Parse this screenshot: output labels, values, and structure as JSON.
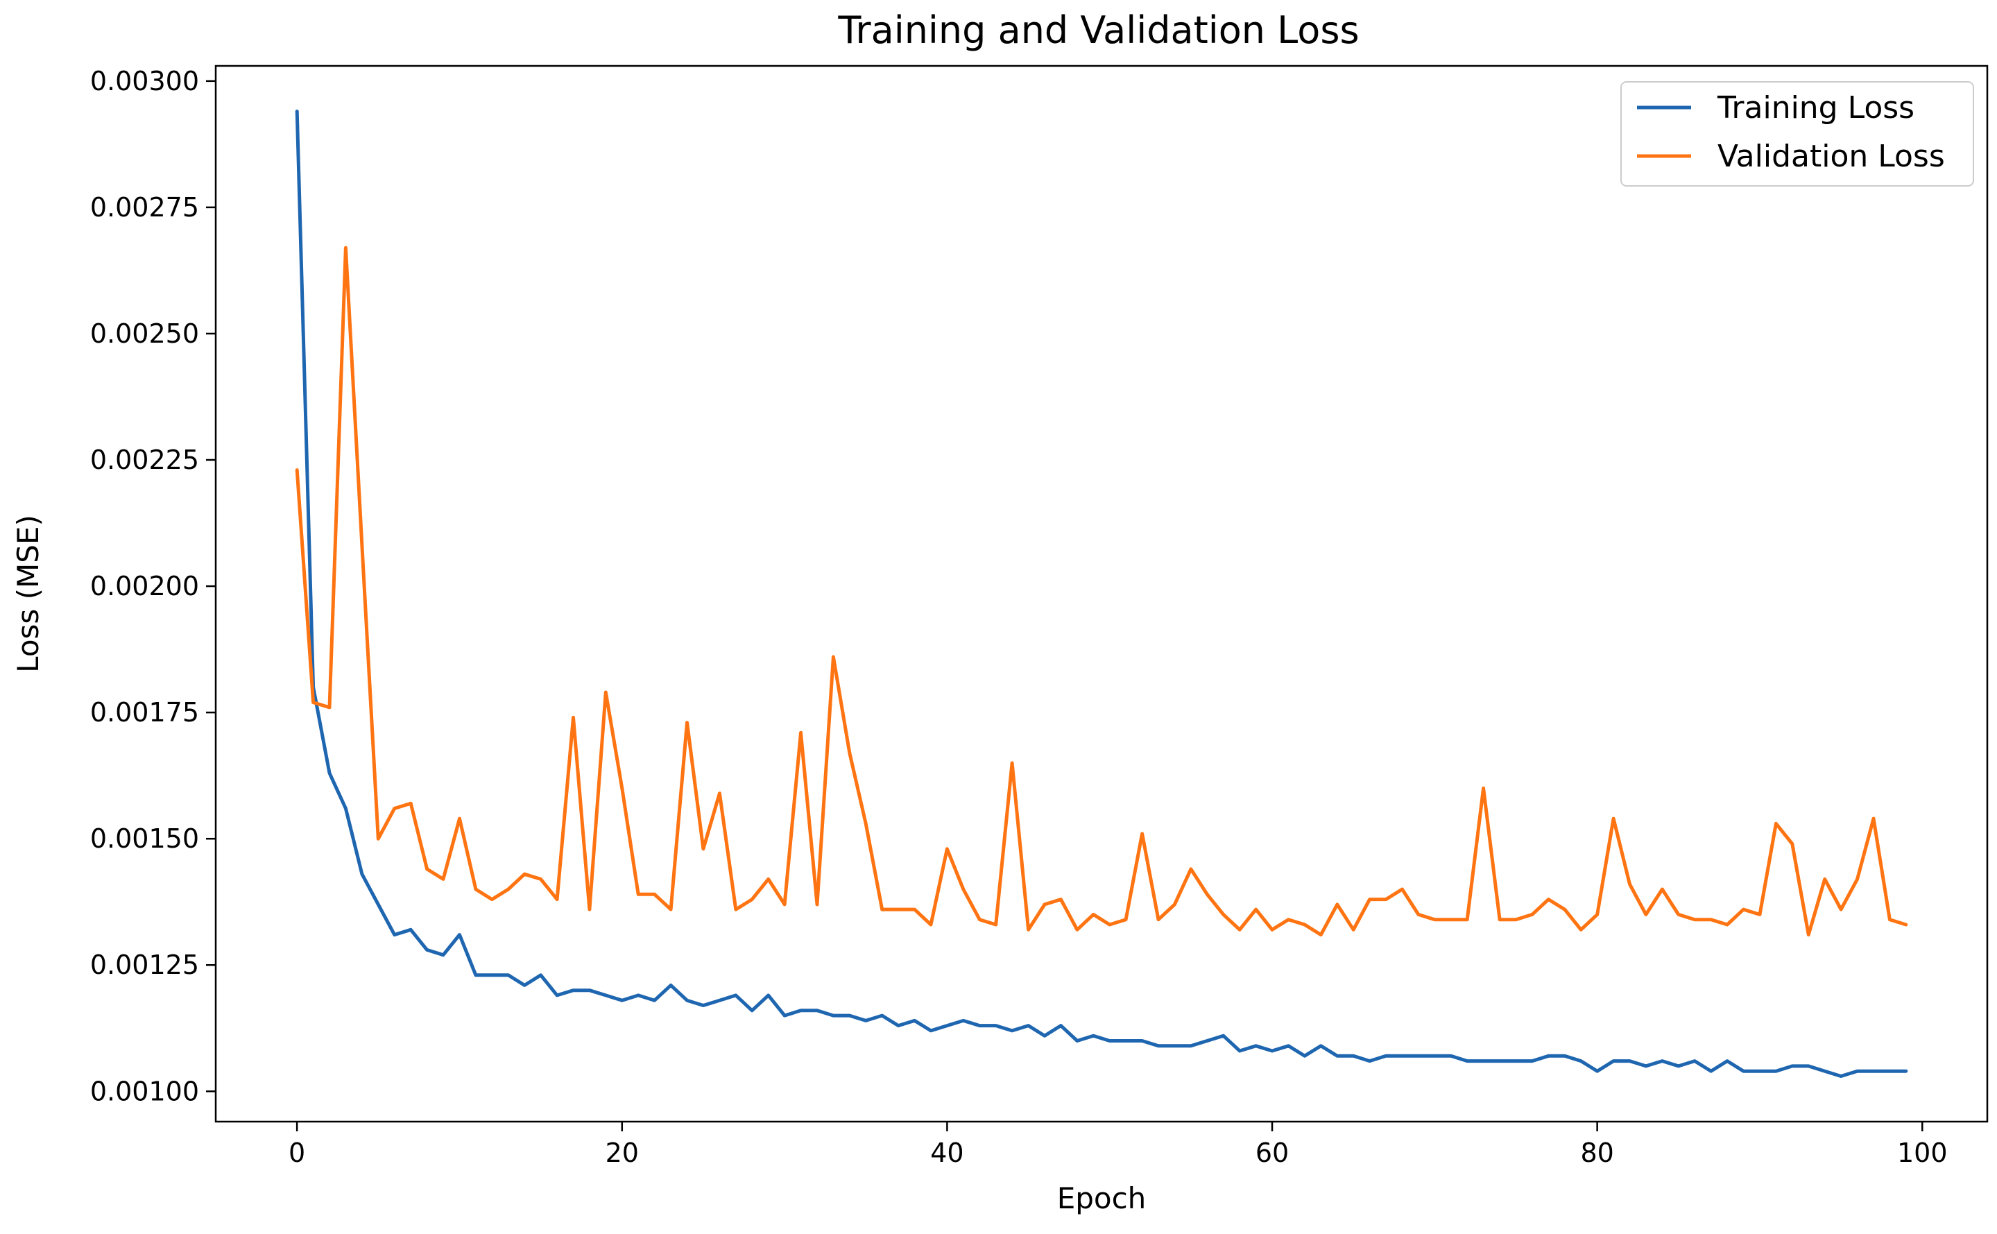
{
  "chart_data": {
    "type": "line",
    "title": "Training and Validation Loss",
    "xlabel": "Epoch",
    "ylabel": "Loss (MSE)",
    "xlim": [
      -5,
      104
    ],
    "ylim": [
      0.00094,
      0.00303
    ],
    "xticks": [
      0,
      20,
      40,
      60,
      80,
      100
    ],
    "yticks": [
      0.001,
      0.00125,
      0.0015,
      0.00175,
      0.002,
      0.00225,
      0.0025,
      0.00275,
      0.003
    ],
    "ytick_labels": [
      "0.00100",
      "0.00125",
      "0.00150",
      "0.00175",
      "0.00200",
      "0.00225",
      "0.00250",
      "0.00275",
      "0.00300"
    ],
    "grid": false,
    "legend_position": "top-right",
    "series": [
      {
        "name": "Training Loss",
        "color": "#1f66b0",
        "x": [
          0,
          1,
          2,
          3,
          4,
          5,
          6,
          7,
          8,
          9,
          10,
          11,
          12,
          13,
          14,
          15,
          16,
          17,
          18,
          19,
          20,
          21,
          22,
          23,
          24,
          25,
          26,
          27,
          28,
          29,
          30,
          31,
          32,
          33,
          34,
          35,
          36,
          37,
          38,
          39,
          40,
          41,
          42,
          43,
          44,
          45,
          46,
          47,
          48,
          49,
          50,
          51,
          52,
          53,
          54,
          55,
          56,
          57,
          58,
          59,
          60,
          61,
          62,
          63,
          64,
          65,
          66,
          67,
          68,
          69,
          70,
          71,
          72,
          73,
          74,
          75,
          76,
          77,
          78,
          79,
          80,
          81,
          82,
          83,
          84,
          85,
          86,
          87,
          88,
          89,
          90,
          91,
          92,
          93,
          94,
          95,
          96,
          97,
          98,
          99
        ],
        "values": [
          0.00294,
          0.0018,
          0.00163,
          0.00156,
          0.00143,
          0.00137,
          0.00131,
          0.00132,
          0.00128,
          0.00127,
          0.00131,
          0.00123,
          0.00123,
          0.00123,
          0.00121,
          0.00123,
          0.00119,
          0.0012,
          0.0012,
          0.00119,
          0.00118,
          0.00119,
          0.00118,
          0.00121,
          0.00118,
          0.00117,
          0.00118,
          0.00119,
          0.00116,
          0.00119,
          0.00115,
          0.00116,
          0.00116,
          0.00115,
          0.00115,
          0.00114,
          0.00115,
          0.00113,
          0.00114,
          0.00112,
          0.00113,
          0.00114,
          0.00113,
          0.00113,
          0.00112,
          0.00113,
          0.00111,
          0.00113,
          0.0011,
          0.00111,
          0.0011,
          0.0011,
          0.0011,
          0.00109,
          0.00109,
          0.00109,
          0.0011,
          0.00111,
          0.00108,
          0.00109,
          0.00108,
          0.00109,
          0.00107,
          0.00109,
          0.00107,
          0.00107,
          0.00106,
          0.00107,
          0.00107,
          0.00107,
          0.00107,
          0.00107,
          0.00106,
          0.00106,
          0.00106,
          0.00106,
          0.00106,
          0.00107,
          0.00107,
          0.00106,
          0.00104,
          0.00106,
          0.00106,
          0.00105,
          0.00106,
          0.00105,
          0.00106,
          0.00104,
          0.00106,
          0.00104,
          0.00104,
          0.00104,
          0.00105,
          0.00105,
          0.00104,
          0.00103,
          0.00104,
          0.00104,
          0.00104,
          0.00104
        ]
      },
      {
        "name": "Validation Loss",
        "color": "#ff7412",
        "x": [
          0,
          1,
          2,
          3,
          4,
          5,
          6,
          7,
          8,
          9,
          10,
          11,
          12,
          13,
          14,
          15,
          16,
          17,
          18,
          19,
          20,
          21,
          22,
          23,
          24,
          25,
          26,
          27,
          28,
          29,
          30,
          31,
          32,
          33,
          34,
          35,
          36,
          37,
          38,
          39,
          40,
          41,
          42,
          43,
          44,
          45,
          46,
          47,
          48,
          49,
          50,
          51,
          52,
          53,
          54,
          55,
          56,
          57,
          58,
          59,
          60,
          61,
          62,
          63,
          64,
          65,
          66,
          67,
          68,
          69,
          70,
          71,
          72,
          73,
          74,
          75,
          76,
          77,
          78,
          79,
          80,
          81,
          82,
          83,
          84,
          85,
          86,
          87,
          88,
          89,
          90,
          91,
          92,
          93,
          94,
          95,
          96,
          97,
          98,
          99
        ],
        "values": [
          0.00223,
          0.00177,
          0.00176,
          0.00267,
          0.00208,
          0.0015,
          0.00156,
          0.00157,
          0.00144,
          0.00142,
          0.00154,
          0.0014,
          0.00138,
          0.0014,
          0.00143,
          0.00142,
          0.00138,
          0.00174,
          0.00136,
          0.00179,
          0.0016,
          0.00139,
          0.00139,
          0.00136,
          0.00173,
          0.00148,
          0.00159,
          0.00136,
          0.00138,
          0.00142,
          0.00137,
          0.00171,
          0.00137,
          0.00186,
          0.00167,
          0.00153,
          0.00136,
          0.00136,
          0.00136,
          0.00133,
          0.00148,
          0.0014,
          0.00134,
          0.00133,
          0.00165,
          0.00132,
          0.00137,
          0.00138,
          0.00132,
          0.00135,
          0.00133,
          0.00134,
          0.00151,
          0.00134,
          0.00137,
          0.00144,
          0.00139,
          0.00135,
          0.00132,
          0.00136,
          0.00132,
          0.00134,
          0.00133,
          0.00131,
          0.00137,
          0.00132,
          0.00138,
          0.00138,
          0.0014,
          0.00135,
          0.00134,
          0.00134,
          0.00134,
          0.0016,
          0.00134,
          0.00134,
          0.00135,
          0.00138,
          0.00136,
          0.00132,
          0.00135,
          0.00154,
          0.00141,
          0.00135,
          0.0014,
          0.00135,
          0.00134,
          0.00134,
          0.00133,
          0.00136,
          0.00135,
          0.00153,
          0.00149,
          0.00131,
          0.00142,
          0.00136,
          0.00142,
          0.00154,
          0.00134,
          0.00133
        ]
      }
    ]
  }
}
